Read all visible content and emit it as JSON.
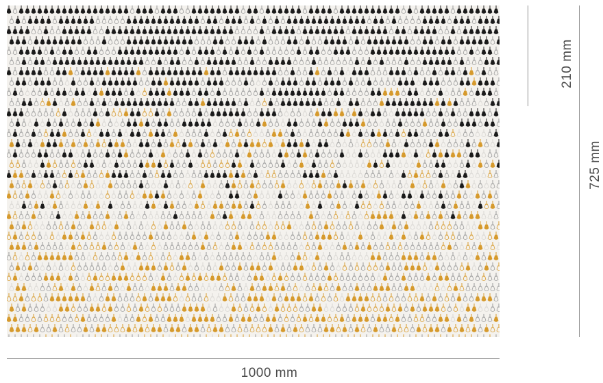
{
  "dimensions": {
    "width_label": "1000 mm",
    "height_label": "725 mm",
    "drop_label": "210 mm"
  },
  "pattern": {
    "colors": {
      "black": "#1b1b1b",
      "gray": "#9a9a9a",
      "light": "#d8d6d2",
      "gold": "#d69a2d",
      "background": "#f4f2ee"
    },
    "element_icon": "pendant-bulb-icon"
  }
}
